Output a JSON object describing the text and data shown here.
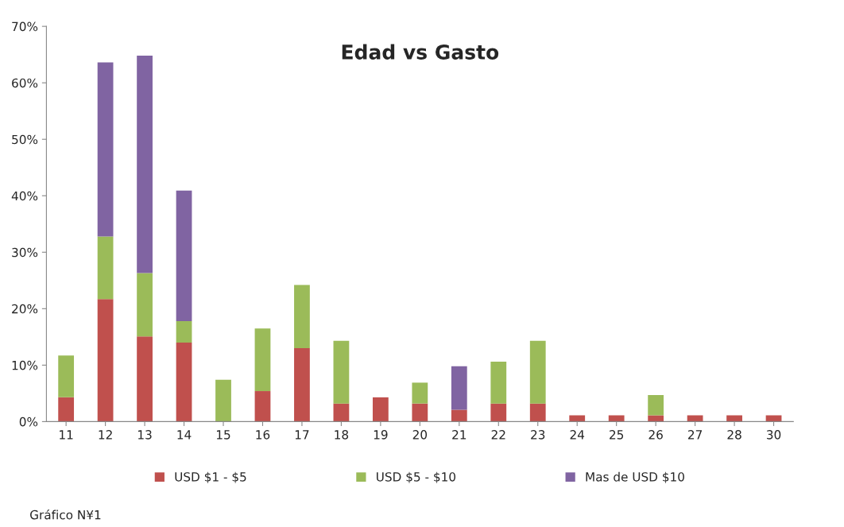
{
  "chart_data": {
    "type": "bar",
    "title": "Edad vs Gasto",
    "stacked": true,
    "categories": [
      "11",
      "12",
      "13",
      "14",
      "15",
      "16",
      "17",
      "18",
      "19",
      "20",
      "21",
      "22",
      "23",
      "24",
      "25",
      "26",
      "27",
      "28",
      "30"
    ],
    "series": [
      {
        "name": "USD $1 - $5",
        "color": "#c0504d",
        "values": [
          4.3,
          21.7,
          15.1,
          14.0,
          null,
          5.4,
          13.0,
          3.2,
          4.3,
          3.2,
          2.1,
          3.2,
          3.2,
          1.1,
          1.1,
          1.1,
          1.1,
          1.1,
          1.1
        ]
      },
      {
        "name": "USD $5 - $10",
        "color": "#9bbb59",
        "values": [
          7.4,
          11.1,
          11.2,
          3.8,
          7.4,
          11.1,
          11.2,
          11.1,
          null,
          3.7,
          null,
          7.4,
          11.1,
          null,
          null,
          3.6,
          null,
          null,
          null
        ]
      },
      {
        "name": "Mas de USD $10",
        "color": "#8064a2",
        "values": [
          null,
          30.8,
          38.5,
          23.1,
          null,
          null,
          null,
          null,
          null,
          null,
          7.7,
          null,
          null,
          null,
          null,
          null,
          null,
          null,
          null
        ]
      }
    ],
    "ylim": [
      0,
      70
    ],
    "yticks": [
      {
        "value": 0,
        "label": "0%"
      },
      {
        "value": 10,
        "label": "10%"
      },
      {
        "value": 20,
        "label": "20%"
      },
      {
        "value": 30,
        "label": "30%"
      },
      {
        "value": 40,
        "label": "40%"
      },
      {
        "value": 50,
        "label": "50%"
      },
      {
        "value": 60,
        "label": "60%"
      },
      {
        "value": 70,
        "label": "70%"
      }
    ],
    "grid": false,
    "legend": "bottom",
    "annotations": [
      "Gráfico N¥1"
    ]
  }
}
